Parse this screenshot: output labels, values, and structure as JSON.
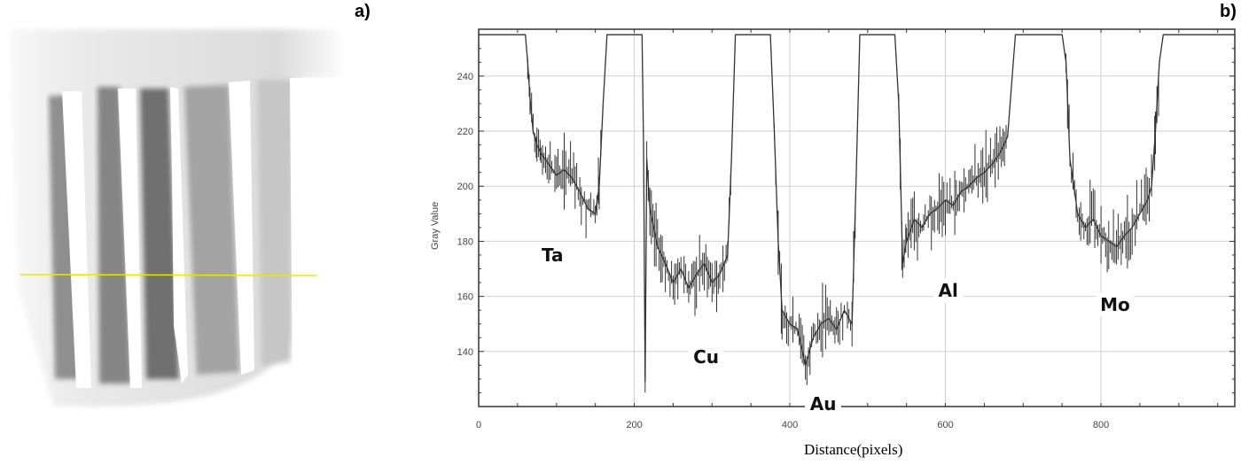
{
  "panels": {
    "a_label": "a)",
    "b_label": "b)"
  },
  "photo": {
    "description": "X-ray radiograph of five metal strips with yellow line profile",
    "line_color": "#e8e800",
    "strips": [
      "Ta",
      "Cu",
      "Au",
      "Al",
      "Mo"
    ]
  },
  "chart_data": {
    "type": "line",
    "title": "",
    "xlabel": "Distance(pixels)",
    "ylabel": "Gray Value",
    "xlim": [
      0,
      972
    ],
    "ylim": [
      120,
      257
    ],
    "xticks": [
      0,
      200,
      400,
      600,
      800
    ],
    "yticks": [
      140,
      160,
      180,
      200,
      220,
      240
    ],
    "grid": true,
    "series": [
      {
        "name": "Gray Value profile",
        "color": "#333333",
        "x": [
          0,
          60,
          63,
          66,
          70,
          75,
          80,
          90,
          100,
          110,
          120,
          130,
          140,
          150,
          155,
          160,
          165,
          170,
          180,
          190,
          200,
          205,
          210,
          212,
          214,
          216,
          220,
          230,
          240,
          250,
          260,
          270,
          280,
          290,
          300,
          310,
          320,
          325,
          330,
          340,
          350,
          360,
          370,
          375,
          380,
          385,
          390,
          400,
          410,
          420,
          430,
          440,
          450,
          460,
          470,
          480,
          485,
          490,
          500,
          510,
          520,
          530,
          535,
          540,
          545,
          550,
          560,
          570,
          580,
          590,
          600,
          610,
          620,
          630,
          640,
          650,
          660,
          670,
          680,
          690,
          700,
          710,
          720,
          730,
          740,
          750,
          755,
          760,
          770,
          780,
          790,
          800,
          810,
          820,
          830,
          840,
          850,
          860,
          865,
          870,
          875,
          880,
          890,
          900,
          972
        ],
        "y": [
          255,
          255,
          245,
          232,
          220,
          215,
          212,
          208,
          204,
          206,
          203,
          198,
          192,
          190,
          200,
          230,
          255,
          255,
          255,
          255,
          255,
          255,
          255,
          215,
          129,
          210,
          192,
          178,
          172,
          165,
          170,
          163,
          168,
          172,
          165,
          168,
          175,
          210,
          255,
          255,
          255,
          255,
          255,
          255,
          220,
          180,
          155,
          150,
          148,
          135,
          145,
          150,
          152,
          148,
          155,
          150,
          200,
          255,
          255,
          255,
          255,
          255,
          255,
          230,
          172,
          180,
          188,
          185,
          190,
          192,
          195,
          193,
          198,
          200,
          203,
          205,
          208,
          212,
          218,
          255,
          255,
          255,
          255,
          255,
          255,
          255,
          245,
          210,
          190,
          185,
          188,
          182,
          180,
          178,
          182,
          185,
          190,
          195,
          200,
          220,
          245,
          255,
          255,
          255,
          255
        ]
      }
    ],
    "annotations": [
      {
        "text": "Ta",
        "x": 90,
        "y": 175
      },
      {
        "text": "Cu",
        "x": 285,
        "y": 138
      },
      {
        "text": "Au",
        "x": 435,
        "y": 121
      },
      {
        "text": "Al",
        "x": 600,
        "y": 162
      },
      {
        "text": "Mo",
        "x": 808,
        "y": 157
      }
    ]
  }
}
